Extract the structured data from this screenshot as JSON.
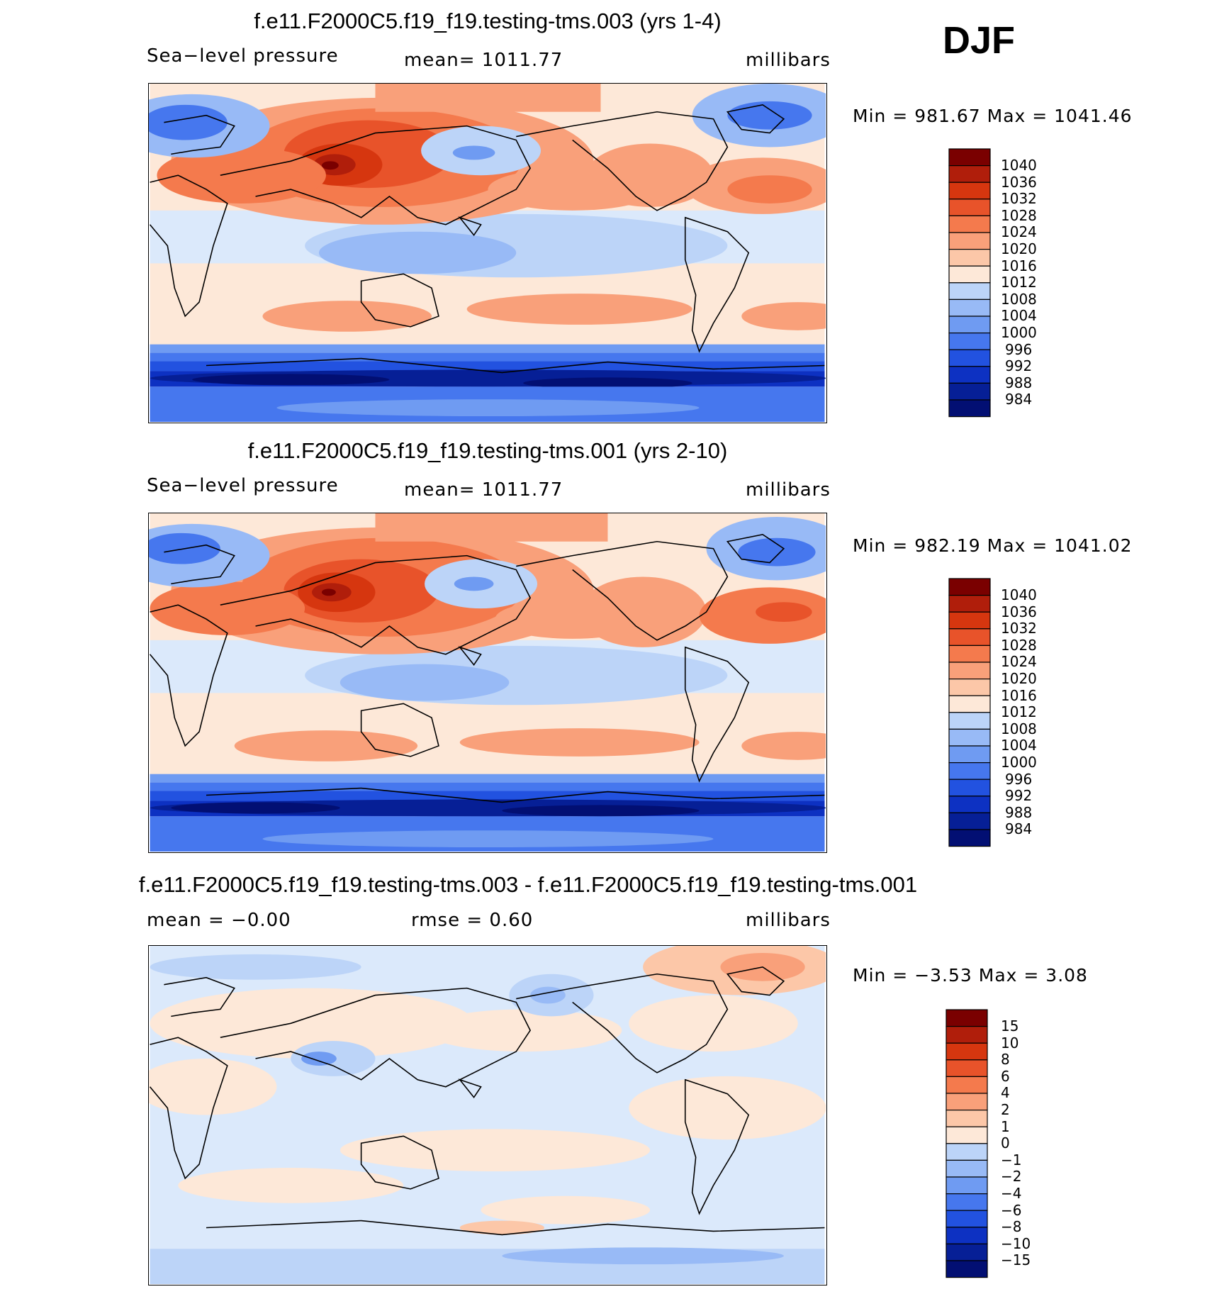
{
  "season": "DJF",
  "panels": [
    {
      "title": "f.e11.F2000C5.f19_f19.testing-tms.003 (yrs 1-4)",
      "left_label": "Sea−level pressure",
      "center_label": "mean=  1011.77",
      "right_label": "millibars",
      "minmax": "Min  =  981.67  Max  =  1041.46",
      "colorbar_labels": [
        "1040",
        "1036",
        "1032",
        "1028",
        "1024",
        "1020",
        "1016",
        "1012",
        "1008",
        "1004",
        "1000",
        "996",
        "992",
        "988",
        "984"
      ]
    },
    {
      "title": "f.e11.F2000C5.f19_f19.testing-tms.001 (yrs 2-10)",
      "left_label": "Sea−level pressure",
      "center_label": "mean=  1011.77",
      "right_label": "millibars",
      "minmax": "Min  =  982.19  Max  =  1041.02",
      "colorbar_labels": [
        "1040",
        "1036",
        "1032",
        "1028",
        "1024",
        "1020",
        "1016",
        "1012",
        "1008",
        "1004",
        "1000",
        "996",
        "992",
        "988",
        "984"
      ]
    },
    {
      "title": "f.e11.F2000C5.f19_f19.testing-tms.003 - f.e11.F2000C5.f19_f19.testing-tms.001",
      "left_label": "mean  =    −0.00",
      "center_label": "rmse  =      0.60",
      "right_label": "millibars",
      "minmax": "Min  =    −3.53  Max  =       3.08",
      "colorbar_labels": [
        "15",
        "10",
        "8",
        "6",
        "4",
        "2",
        "1",
        "0",
        "−1",
        "−2",
        "−4",
        "−6",
        "−8",
        "−10",
        "−15"
      ]
    }
  ],
  "colors": {
    "palette": [
      "#7a0000",
      "#b01e0b",
      "#d6360f",
      "#e8532a",
      "#f47a4d",
      "#f9a07a",
      "#fcc7a8",
      "#fde8d8",
      "#dbe9fb",
      "#bcd4f8",
      "#98baf6",
      "#6f9bf2",
      "#4677ee",
      "#2252e0",
      "#0d31c2",
      "#061f96",
      "#020f73"
    ]
  }
}
